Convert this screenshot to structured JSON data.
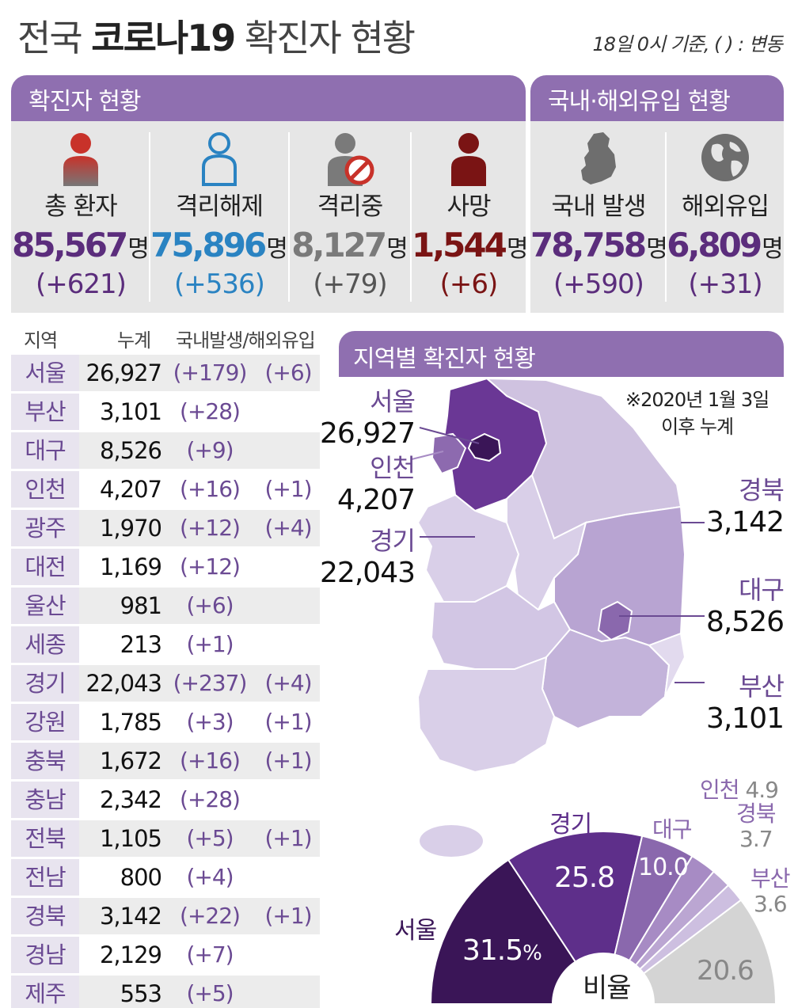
{
  "header": {
    "title_prefix": "전국",
    "title_bold": "코로나19",
    "title_suffix": "확진자 현황",
    "basis": "18일 0시 기준, ( ) : 변동"
  },
  "status_panel": {
    "title": "확진자 현황",
    "items": [
      {
        "label": "총 환자",
        "value": "85,567",
        "unit": "명",
        "change": "(+621)"
      },
      {
        "label": "격리해제",
        "value": "75,896",
        "unit": "명",
        "change": "(+536)"
      },
      {
        "label": "격리중",
        "value": "8,127",
        "unit": "명",
        "change": "(+79)"
      },
      {
        "label": "사망",
        "value": "1,544",
        "unit": "명",
        "change": "(+6)"
      }
    ]
  },
  "origin_panel": {
    "title": "국내·해외유입 현황",
    "items": [
      {
        "label": "국내 발생",
        "value": "78,758",
        "unit": "명",
        "change": "(+590)"
      },
      {
        "label": "해외유입",
        "value": "6,809",
        "unit": "명",
        "change": "(+31)"
      }
    ]
  },
  "colors": {
    "total": "#5b2d7c",
    "released": "#2a83c2",
    "isolated": "#7a7a7a",
    "deaths": "#7a1414",
    "purple_dark": "#3a1557",
    "purple_main": "#6a3795",
    "purple_light": "#cfc2e0",
    "panel_header": "#8f6fb0"
  },
  "icons": [
    "person-icon",
    "person-outline-icon",
    "person-prohibited-icon",
    "person-icon",
    "korea-map-icon",
    "globe-icon"
  ],
  "table": {
    "headers": {
      "region": "지역",
      "total": "누계",
      "new": "국내발생/해외유입"
    },
    "rows": [
      {
        "region": "서울",
        "total": "26,927",
        "domestic": "(+179)",
        "imported": "(+6)"
      },
      {
        "region": "부산",
        "total": "3,101",
        "domestic": "(+28)",
        "imported": ""
      },
      {
        "region": "대구",
        "total": "8,526",
        "domestic": "(+9)",
        "imported": ""
      },
      {
        "region": "인천",
        "total": "4,207",
        "domestic": "(+16)",
        "imported": "(+1)"
      },
      {
        "region": "광주",
        "total": "1,970",
        "domestic": "(+12)",
        "imported": "(+4)"
      },
      {
        "region": "대전",
        "total": "1,169",
        "domestic": "(+12)",
        "imported": ""
      },
      {
        "region": "울산",
        "total": "981",
        "domestic": "(+6)",
        "imported": ""
      },
      {
        "region": "세종",
        "total": "213",
        "domestic": "(+1)",
        "imported": ""
      },
      {
        "region": "경기",
        "total": "22,043",
        "domestic": "(+237)",
        "imported": "(+4)"
      },
      {
        "region": "강원",
        "total": "1,785",
        "domestic": "(+3)",
        "imported": "(+1)"
      },
      {
        "region": "충북",
        "total": "1,672",
        "domestic": "(+16)",
        "imported": "(+1)"
      },
      {
        "region": "충남",
        "total": "2,342",
        "domestic": "(+28)",
        "imported": ""
      },
      {
        "region": "전북",
        "total": "1,105",
        "domestic": "(+5)",
        "imported": "(+1)"
      },
      {
        "region": "전남",
        "total": "800",
        "domestic": "(+4)",
        "imported": ""
      },
      {
        "region": "경북",
        "total": "3,142",
        "domestic": "(+22)",
        "imported": "(+1)"
      },
      {
        "region": "경남",
        "total": "2,129",
        "domestic": "(+7)",
        "imported": ""
      },
      {
        "region": "제주",
        "total": "553",
        "domestic": "(+5)",
        "imported": ""
      }
    ]
  },
  "map": {
    "title": "지역별 확진자 현황",
    "note_line1": "※2020년 1월 3일",
    "note_line2": "이후 누계",
    "callouts": [
      {
        "name": "서울",
        "value": "26,927"
      },
      {
        "name": "인천",
        "value": "4,207"
      },
      {
        "name": "경기",
        "value": "22,043"
      },
      {
        "name": "경북",
        "value": "3,142"
      },
      {
        "name": "대구",
        "value": "8,526"
      },
      {
        "name": "부산",
        "value": "3,101"
      }
    ]
  },
  "ratio": {
    "center_label": "비율",
    "percent_sign": "%",
    "slices": [
      {
        "name": "서울",
        "value": 31.5,
        "label": "31.5",
        "color": "#3a1557"
      },
      {
        "name": "경기",
        "value": 25.8,
        "label": "25.8",
        "color": "#5e2f8a"
      },
      {
        "name": "대구",
        "value": 10.0,
        "label": "10.0",
        "color": "#8a68ad"
      },
      {
        "name": "인천",
        "value": 4.9,
        "label": "4.9",
        "color": "#a78bc4"
      },
      {
        "name": "경북",
        "value": 3.7,
        "label": "3.7",
        "color": "#bba6d2"
      },
      {
        "name": "부산",
        "value": 3.6,
        "label": "3.6",
        "color": "#cdbfe0"
      },
      {
        "name": "",
        "value": 20.6,
        "label": "20.6",
        "color": "#d4d4d4"
      }
    ]
  }
}
